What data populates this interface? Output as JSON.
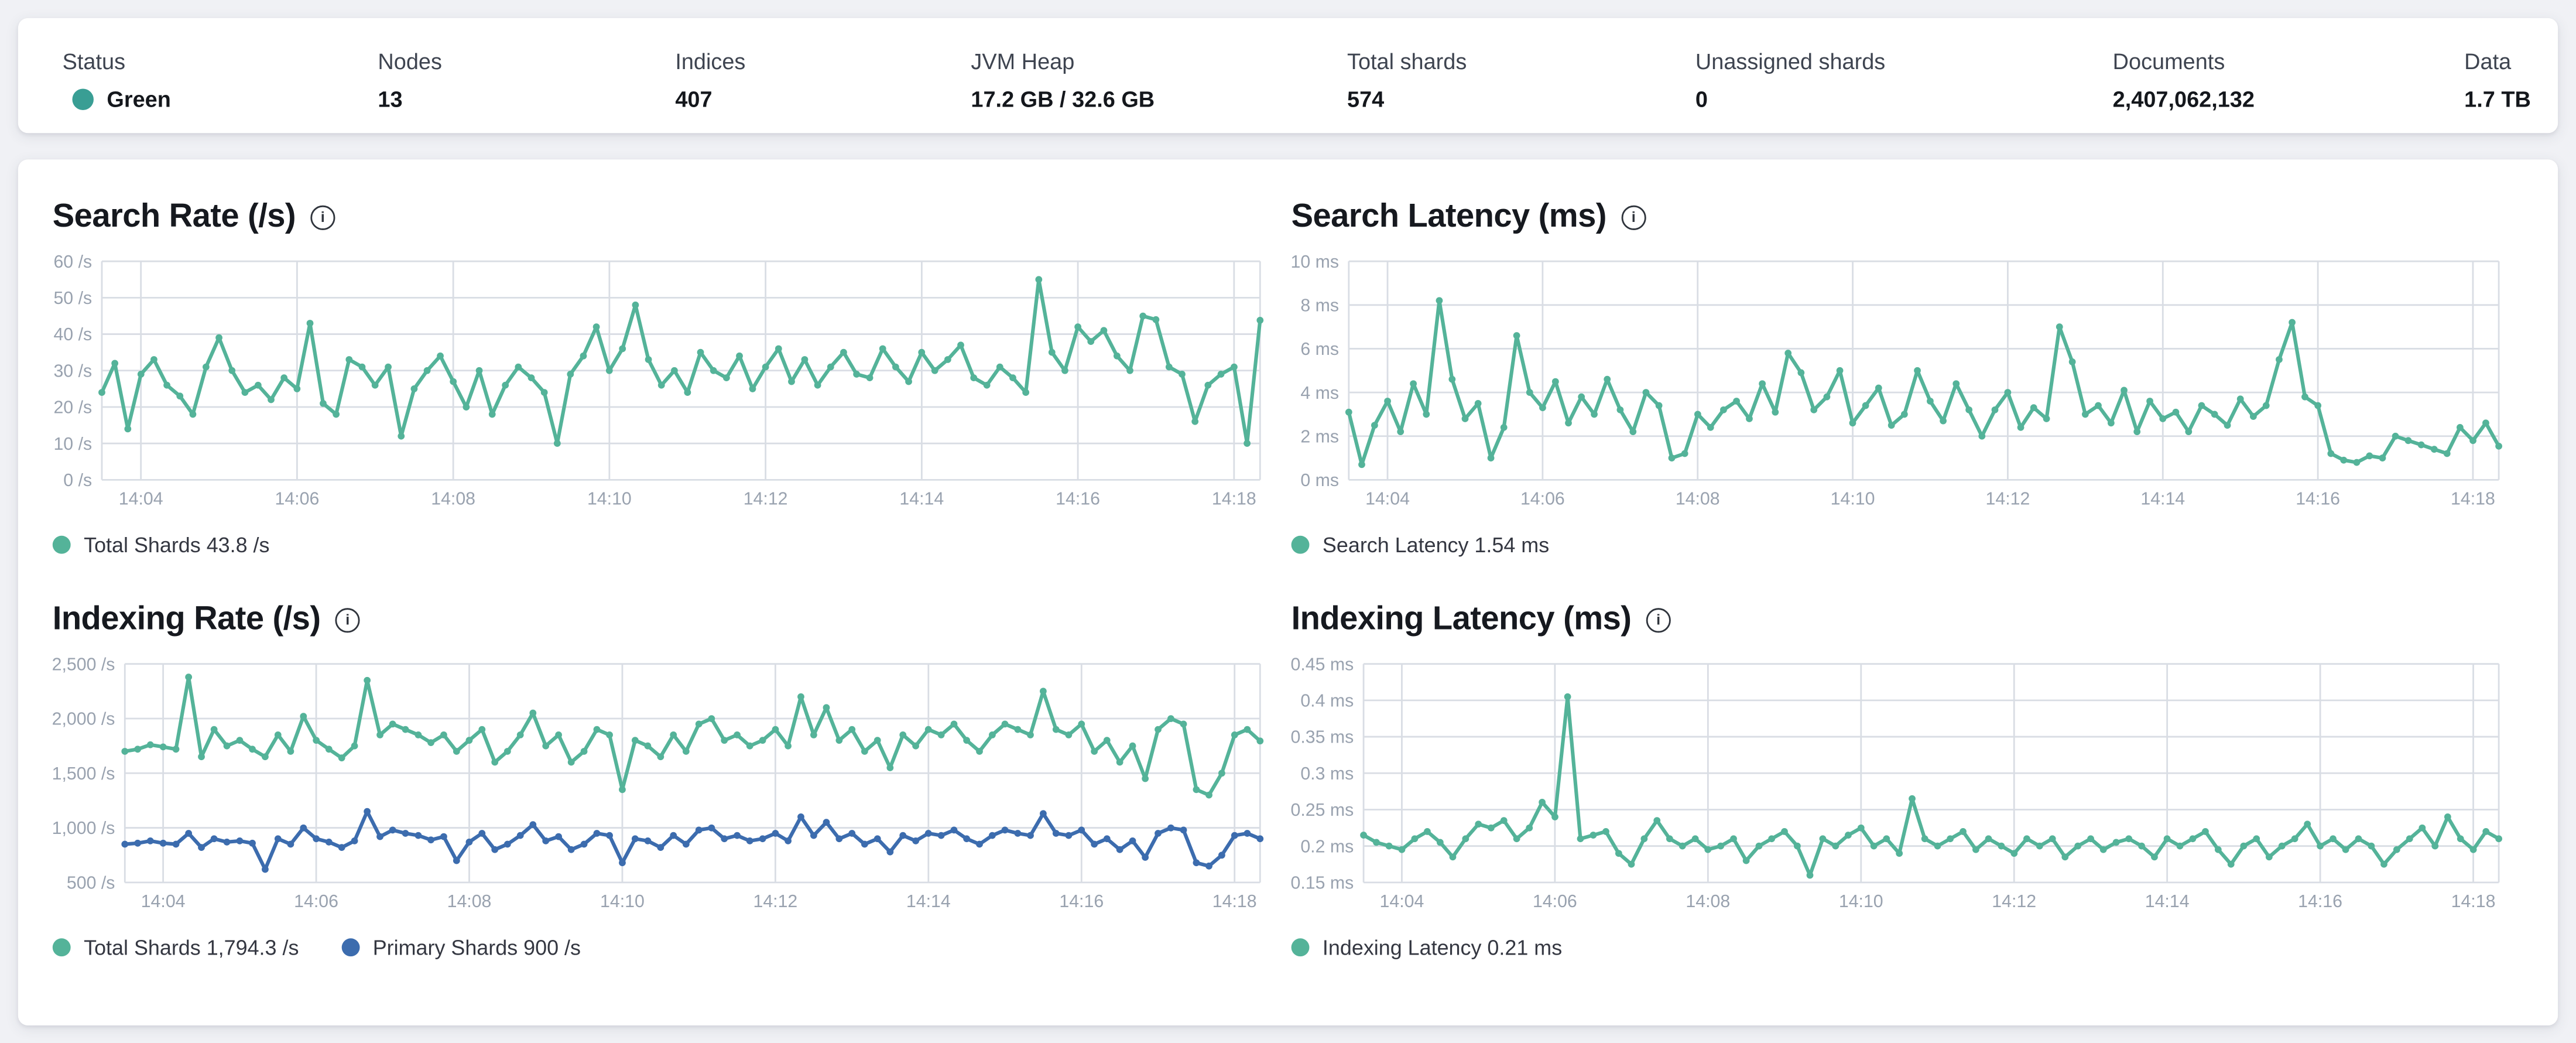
{
  "status_bar": {
    "health_color": "#399e94",
    "items": [
      {
        "label": "Status",
        "value": "Green"
      },
      {
        "label": "Nodes",
        "value": "13"
      },
      {
        "label": "Indices",
        "value": "407"
      },
      {
        "label": "JVM Heap",
        "value": "17.2 GB / 32.6 GB"
      },
      {
        "label": "Total shards",
        "value": "574"
      },
      {
        "label": "Unassigned shards",
        "value": "0"
      },
      {
        "label": "Documents",
        "value": "2,407,062,132"
      },
      {
        "label": "Data",
        "value": "1.7 TB"
      }
    ]
  },
  "icons": {
    "info": "i"
  },
  "colors": {
    "teal": "#54b399",
    "blue": "#3c6cae",
    "grid": "#d9dde4",
    "axis_text": "#99a2af"
  },
  "charts": [
    {
      "type": "line",
      "title": "Search Rate (/s)",
      "y_min": 0,
      "y_max": 60,
      "y_tick_labels": [
        "0 /s",
        "10 /s",
        "20 /s",
        "30 /s",
        "40 /s",
        "50 /s",
        "60 /s"
      ],
      "x_tick_labels": [
        "14:04",
        "14:06",
        "14:08",
        "14:10",
        "14:12",
        "14:14",
        "14:16",
        "14:18"
      ],
      "legend": [
        {
          "label": "Total Shards 43.8 /s",
          "color": "#54b399"
        }
      ],
      "series": [
        {
          "name": "Total Shards",
          "current": "43.8 /s",
          "color": "#54b399",
          "values": [
            24,
            32,
            14,
            29,
            33,
            26,
            23,
            18,
            31,
            39,
            30,
            24,
            26,
            22,
            28,
            25,
            43,
            21,
            18,
            33,
            31,
            26,
            31,
            12,
            25,
            30,
            34,
            27,
            20,
            30,
            18,
            26,
            31,
            28,
            24,
            10,
            29,
            34,
            42,
            30,
            36,
            48,
            33,
            26,
            30,
            24,
            35,
            30,
            28,
            34,
            25,
            31,
            36,
            27,
            33,
            26,
            31,
            35,
            29,
            28,
            36,
            31,
            27,
            35,
            30,
            33,
            37,
            28,
            26,
            31,
            28,
            24,
            55,
            35,
            30,
            42,
            38,
            41,
            34,
            30,
            45,
            44,
            31,
            29,
            16,
            26,
            29,
            31,
            10,
            43.8
          ]
        }
      ]
    },
    {
      "type": "line",
      "title": "Search Latency (ms)",
      "y_min": 0,
      "y_max": 10,
      "y_tick_labels": [
        "0 ms",
        "2 ms",
        "4 ms",
        "6 ms",
        "8 ms",
        "10 ms"
      ],
      "x_tick_labels": [
        "14:04",
        "14:06",
        "14:08",
        "14:10",
        "14:12",
        "14:14",
        "14:16",
        "14:18"
      ],
      "legend": [
        {
          "label": "Search Latency 1.54 ms",
          "color": "#54b399"
        }
      ],
      "series": [
        {
          "name": "Search Latency",
          "current": "1.54 ms",
          "color": "#54b399",
          "values": [
            3.1,
            0.7,
            2.5,
            3.6,
            2.2,
            4.4,
            3.0,
            8.2,
            4.6,
            2.8,
            3.5,
            1.0,
            2.4,
            6.6,
            4.0,
            3.3,
            4.5,
            2.6,
            3.8,
            3.0,
            4.6,
            3.2,
            2.2,
            4.0,
            3.4,
            1.0,
            1.2,
            3.0,
            2.4,
            3.2,
            3.6,
            2.8,
            4.4,
            3.1,
            5.8,
            4.9,
            3.2,
            3.8,
            5.0,
            2.6,
            3.4,
            4.2,
            2.5,
            3.0,
            5.0,
            3.6,
            2.7,
            4.4,
            3.2,
            2.0,
            3.2,
            4.0,
            2.4,
            3.3,
            2.8,
            7.0,
            5.4,
            3.0,
            3.4,
            2.6,
            4.1,
            2.2,
            3.6,
            2.8,
            3.1,
            2.2,
            3.4,
            3.0,
            2.5,
            3.7,
            2.9,
            3.4,
            5.5,
            7.2,
            3.8,
            3.4,
            1.2,
            0.9,
            0.8,
            1.1,
            1.0,
            2.0,
            1.8,
            1.6,
            1.4,
            1.2,
            2.4,
            1.8,
            2.6,
            1.54
          ]
        }
      ]
    },
    {
      "type": "line",
      "title": "Indexing Rate (/s)",
      "y_min": 500,
      "y_max": 2500,
      "y_tick_labels": [
        "500 /s",
        "1,000 /s",
        "1,500 /s",
        "2,000 /s",
        "2,500 /s"
      ],
      "x_tick_labels": [
        "14:04",
        "14:06",
        "14:08",
        "14:10",
        "14:12",
        "14:14",
        "14:16",
        "14:18"
      ],
      "legend": [
        {
          "label": "Total Shards 1,794.3 /s",
          "color": "#54b399"
        },
        {
          "label": "Primary Shards 900 /s",
          "color": "#3c6cae"
        }
      ],
      "series": [
        {
          "name": "Total Shards",
          "current": "1,794.3 /s",
          "color": "#54b399",
          "values": [
            1700,
            1720,
            1760,
            1740,
            1720,
            2380,
            1650,
            1900,
            1750,
            1800,
            1720,
            1650,
            1850,
            1700,
            2020,
            1800,
            1720,
            1640,
            1750,
            2350,
            1850,
            1950,
            1900,
            1850,
            1780,
            1850,
            1700,
            1800,
            1900,
            1600,
            1700,
            1850,
            2050,
            1750,
            1850,
            1600,
            1700,
            1900,
            1850,
            1350,
            1800,
            1750,
            1650,
            1850,
            1700,
            1950,
            2000,
            1800,
            1850,
            1750,
            1800,
            1900,
            1750,
            2200,
            1850,
            2100,
            1800,
            1900,
            1700,
            1800,
            1550,
            1850,
            1750,
            1900,
            1850,
            1950,
            1800,
            1700,
            1850,
            1950,
            1900,
            1850,
            2250,
            1900,
            1850,
            1950,
            1700,
            1800,
            1600,
            1750,
            1450,
            1900,
            2000,
            1950,
            1350,
            1300,
            1500,
            1850,
            1900,
            1794.3
          ]
        },
        {
          "name": "Primary Shards",
          "current": "900 /s",
          "color": "#3c6cae",
          "values": [
            850,
            860,
            880,
            860,
            850,
            950,
            820,
            900,
            870,
            880,
            860,
            620,
            900,
            850,
            1000,
            900,
            870,
            820,
            880,
            1150,
            920,
            980,
            950,
            930,
            890,
            920,
            700,
            870,
            950,
            800,
            850,
            930,
            1030,
            880,
            920,
            800,
            850,
            950,
            930,
            680,
            900,
            880,
            820,
            930,
            850,
            980,
            1000,
            900,
            930,
            880,
            900,
            950,
            880,
            1100,
            930,
            1050,
            900,
            950,
            850,
            900,
            780,
            930,
            880,
            950,
            930,
            980,
            900,
            850,
            930,
            980,
            950,
            930,
            1130,
            950,
            930,
            980,
            850,
            900,
            800,
            880,
            730,
            950,
            1000,
            980,
            680,
            650,
            750,
            930,
            950,
            900
          ]
        }
      ]
    },
    {
      "type": "line",
      "title": "Indexing Latency (ms)",
      "y_min": 0.15,
      "y_max": 0.45,
      "y_tick_labels": [
        "0.15 ms",
        "0.2 ms",
        "0.25 ms",
        "0.3 ms",
        "0.35 ms",
        "0.4 ms",
        "0.45 ms"
      ],
      "x_tick_labels": [
        "14:04",
        "14:06",
        "14:08",
        "14:10",
        "14:12",
        "14:14",
        "14:16",
        "14:18"
      ],
      "legend": [
        {
          "label": "Indexing Latency 0.21 ms",
          "color": "#54b399"
        }
      ],
      "series": [
        {
          "name": "Indexing Latency",
          "current": "0.21 ms",
          "color": "#54b399",
          "values": [
            0.215,
            0.205,
            0.2,
            0.195,
            0.21,
            0.22,
            0.205,
            0.185,
            0.21,
            0.23,
            0.225,
            0.235,
            0.21,
            0.225,
            0.26,
            0.24,
            0.405,
            0.21,
            0.215,
            0.22,
            0.19,
            0.175,
            0.21,
            0.235,
            0.21,
            0.2,
            0.21,
            0.195,
            0.2,
            0.21,
            0.18,
            0.2,
            0.21,
            0.22,
            0.2,
            0.16,
            0.21,
            0.2,
            0.215,
            0.225,
            0.2,
            0.21,
            0.19,
            0.265,
            0.21,
            0.2,
            0.21,
            0.22,
            0.195,
            0.21,
            0.2,
            0.19,
            0.21,
            0.2,
            0.21,
            0.185,
            0.2,
            0.21,
            0.195,
            0.205,
            0.21,
            0.2,
            0.185,
            0.21,
            0.2,
            0.21,
            0.22,
            0.195,
            0.175,
            0.2,
            0.21,
            0.185,
            0.2,
            0.21,
            0.23,
            0.2,
            0.21,
            0.195,
            0.21,
            0.2,
            0.175,
            0.195,
            0.21,
            0.225,
            0.2,
            0.24,
            0.21,
            0.195,
            0.22,
            0.21
          ]
        }
      ]
    }
  ]
}
